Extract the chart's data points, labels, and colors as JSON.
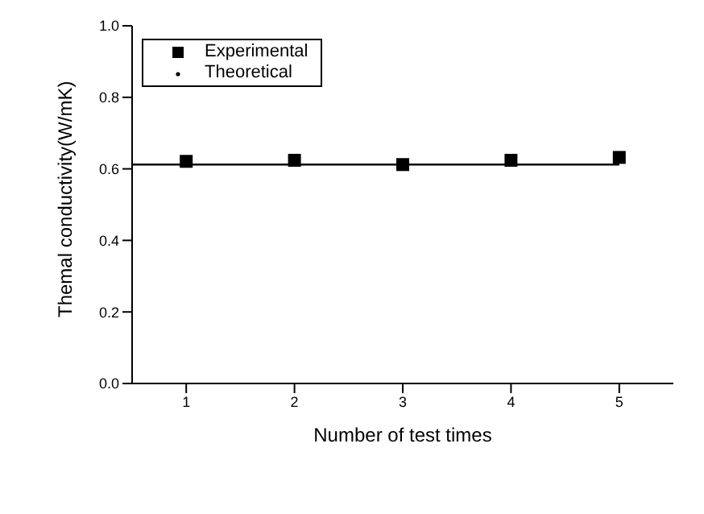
{
  "chart_data": {
    "type": "scatter",
    "xlabel": "Number of test times",
    "ylabel": "Themal conductivity(W/mK)",
    "xlim": [
      0.5,
      5.5
    ],
    "xticks": [
      1,
      2,
      3,
      4,
      5
    ],
    "ylim": [
      0,
      1
    ],
    "yticks": [
      {
        "value": 0,
        "label": "0.0"
      },
      {
        "value": 0.2,
        "label": "0.2"
      },
      {
        "value": 0.4,
        "label": "0.4"
      },
      {
        "value": 0.6,
        "label": "0.6"
      },
      {
        "value": 0.8,
        "label": "0.8"
      },
      {
        "value": 1,
        "label": "1.0"
      }
    ],
    "grid": false,
    "legend": "top left",
    "series": [
      {
        "name": "Experimental",
        "marker": "square",
        "color": "#000000",
        "x": [
          1,
          2,
          3,
          4,
          5
        ],
        "values": [
          0.621,
          0.624,
          0.612,
          0.624,
          0.632
        ]
      },
      {
        "name": "Theoretical",
        "type": "line",
        "marker": "none",
        "color": "#000000",
        "x": [
          0.5,
          5
        ],
        "values": [
          0.612,
          0.612
        ]
      }
    ]
  }
}
